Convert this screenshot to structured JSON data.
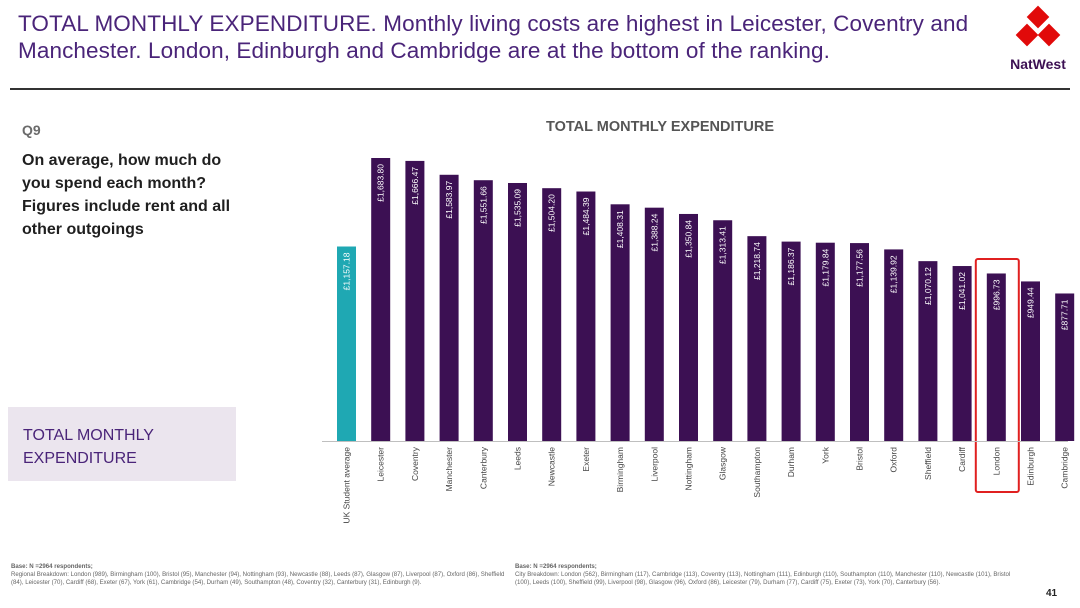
{
  "slide": {
    "title": "TOTAL MONTHLY EXPENDITURE. Monthly living costs are highest in Leicester, Coventry and Manchester. London, Edinburgh and Cambridge are at the bottom of the ranking.",
    "brand": "NatWest",
    "question_number": "Q9",
    "question_text": "On average, how much do you spend each month? Figures include rent and all other outgoings",
    "side_label": "TOTAL MONTHLY EXPENDITURE",
    "page_number": "41"
  },
  "footnotes": {
    "left_heading": "Base: N =2964 respondents;",
    "left_text": "Regional Breakdown: London (989), Birmingham (100), Bristol (95), Manchester (94), Nottingham (93), Newcastle (88), Leeds (87), Glasgow (87), Liverpool (87), Oxford (86), Sheffield (84), Leicester (70), Cardiff (68), Exeter (67), York (61), Cambridge (54), Durham (49), Southampton (48), Coventry (32), Canterbury (31), Edinburgh (9).",
    "right_heading": "Base: N =2964 respondents;",
    "right_text": "City Breakdown: London (562), Birmingham (117), Cambridge (113), Coventry (113), Nottingham (111), Edinburgh (110), Southampton (110), Manchester (110), Newcastle (101), Bristol (100), Leeds (100), Sheffield (99), Liverpool (98), Glasgow (96), Oxford (86), Leicester (79), Durham (77), Cardiff (75), Exeter (73), York (70), Canterbury (56)."
  },
  "colors": {
    "bar": "#3c1053",
    "average_bar": "#1fa8b3",
    "highlight_box": "#e02020",
    "title": "#4a2479"
  },
  "chart_data": {
    "type": "bar",
    "title": "TOTAL MONTHLY EXPENDITURE",
    "xlabel": "",
    "ylabel": "",
    "ylim": [
      0,
      1800
    ],
    "categories": [
      "UK Student average",
      "Leicester",
      "Coventry",
      "Manchester",
      "Canterbury",
      "Leeds",
      "Newcastle",
      "Exeter",
      "Birmingham",
      "Liverpool",
      "Nottingham",
      "Glasgow",
      "Southampton",
      "Durham",
      "York",
      "Bristol",
      "Oxford",
      "Sheffield",
      "Cardiff",
      "London",
      "Edinburgh",
      "Cambridge"
    ],
    "values": [
      1157.18,
      1683.8,
      1666.47,
      1583.97,
      1551.66,
      1535.09,
      1504.2,
      1484.39,
      1408.31,
      1388.24,
      1350.84,
      1313.41,
      1218.74,
      1186.37,
      1179.84,
      1177.56,
      1139.92,
      1070.12,
      1041.02,
      996.73,
      949.44,
      877.71
    ],
    "data_labels": [
      "£1,157.18",
      "£1,683.80",
      "£1,666.47",
      "£1,583.97",
      "£1,551.66",
      "£1,535.09",
      "£1,504.20",
      "£1,484.39",
      "£1,408.31",
      "£1,388.24",
      "£1,350.84",
      "£1,313.41",
      "£1,218.74",
      "£1,186.37",
      "£1,179.84",
      "£1,177.56",
      "£1,139.92",
      "£1,070.12",
      "£1,041.02",
      "£996.73",
      "£949.44",
      "£877.71"
    ],
    "average_category": "UK Student average",
    "highlighted_category": "London"
  }
}
